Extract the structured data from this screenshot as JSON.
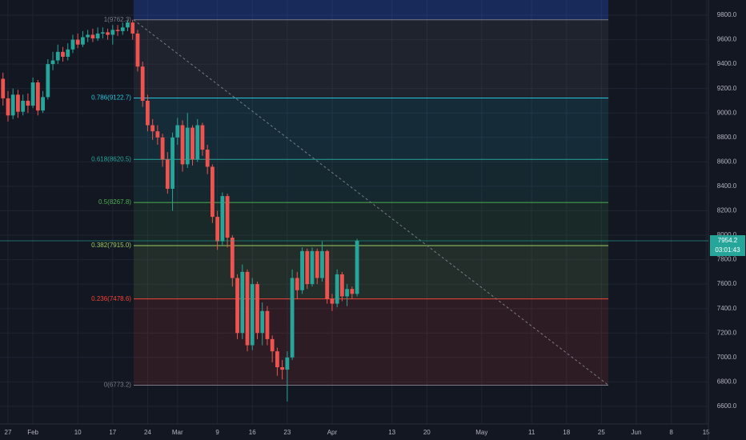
{
  "chart_data": {
    "type": "candlestick",
    "x": [
      -1,
      0,
      1,
      2,
      3,
      4,
      5,
      6,
      7,
      8,
      9,
      10,
      11,
      12,
      13,
      14,
      15,
      16,
      17,
      18,
      19,
      20,
      21,
      22,
      23,
      24,
      25,
      26,
      27,
      28,
      29,
      30,
      31,
      32,
      33,
      34,
      35,
      36,
      37,
      38,
      39,
      40,
      41,
      42,
      43,
      44,
      45,
      46,
      47,
      48,
      49,
      50,
      51,
      52,
      53,
      54,
      55,
      56,
      57,
      58,
      59,
      60,
      61,
      62,
      63,
      64,
      65,
      66,
      67,
      68,
      69,
      70
    ],
    "open": [
      9280,
      9120,
      8980,
      9150,
      9010,
      9100,
      9060,
      9250,
      9020,
      9130,
      9400,
      9430,
      9500,
      9460,
      9520,
      9600,
      9560,
      9620,
      9640,
      9610,
      9650,
      9660,
      9640,
      9680,
      9670,
      9700,
      9740,
      9650,
      9380,
      9100,
      8900,
      8850,
      8800,
      8620,
      8380,
      8800,
      8900,
      8580,
      8880,
      8620,
      8900,
      8700,
      8560,
      8150,
      7950,
      8320,
      7980,
      7650,
      7200,
      7700,
      7100,
      7600,
      7200,
      7380,
      7150,
      7050,
      6920,
      6900,
      7000,
      7650,
      7550,
      7870,
      7600,
      7870,
      7650,
      7870,
      7480,
      7440,
      7680,
      7500,
      7560,
      7520
    ],
    "high": [
      9330,
      9180,
      9200,
      9190,
      9150,
      9160,
      9290,
      9270,
      9180,
      9440,
      9500,
      9560,
      9540,
      9570,
      9640,
      9650,
      9670,
      9680,
      9690,
      9700,
      9700,
      9690,
      9720,
      9720,
      9740,
      9760,
      9762.3,
      9680,
      9420,
      9150,
      8950,
      8900,
      8830,
      8680,
      8840,
      8960,
      8940,
      9000,
      8900,
      8950,
      8920,
      8740,
      8580,
      8200,
      8350,
      8340,
      8000,
      7680,
      7760,
      7720,
      7650,
      7620,
      7450,
      7420,
      7180,
      7080,
      6980,
      7050,
      7720,
      7700,
      7900,
      7890,
      7900,
      7890,
      7950,
      7880,
      7520,
      7720,
      7700,
      7600,
      7580,
      7970
    ],
    "low": [
      9060,
      8930,
      8950,
      8960,
      8980,
      9000,
      9040,
      8980,
      9000,
      9110,
      9350,
      9400,
      9420,
      9430,
      9490,
      9530,
      9540,
      9580,
      9580,
      9590,
      9610,
      9600,
      9560,
      9630,
      9640,
      9670,
      9600,
      9340,
      9050,
      8850,
      8780,
      8740,
      8560,
      8340,
      8200,
      8740,
      8520,
      8550,
      8570,
      8600,
      8650,
      8500,
      8100,
      7880,
      7920,
      7900,
      7580,
      7150,
      7150,
      7050,
      7060,
      7150,
      7100,
      7100,
      6960,
      6850,
      6820,
      6640,
      6980,
      7480,
      7520,
      7560,
      7580,
      7600,
      7620,
      7440,
      7380,
      7410,
      7460,
      7420,
      7480,
      7500
    ],
    "close": [
      9120,
      8980,
      9150,
      9010,
      9100,
      9060,
      9250,
      9020,
      9130,
      9400,
      9430,
      9500,
      9460,
      9520,
      9600,
      9560,
      9620,
      9640,
      9610,
      9650,
      9660,
      9640,
      9680,
      9670,
      9700,
      9740,
      9650,
      9380,
      9100,
      8900,
      8850,
      8800,
      8620,
      8380,
      8800,
      8900,
      8580,
      8880,
      8620,
      8900,
      8700,
      8560,
      8150,
      7950,
      8320,
      7980,
      7650,
      7200,
      7700,
      7100,
      7600,
      7200,
      7380,
      7150,
      7050,
      6920,
      6900,
      7000,
      7650,
      7550,
      7870,
      7600,
      7870,
      7650,
      7870,
      7480,
      7440,
      7680,
      7500,
      7560,
      7520,
      7954.2
    ],
    "up_color": "#26a69a",
    "down_color": "#ef5350",
    "xlim": [
      -1.6,
      140.45
    ],
    "ylim": [
      6455.5,
      9924.4
    ],
    "xticks": [
      {
        "value": 0,
        "label": "27"
      },
      {
        "value": 5,
        "label": "Feb"
      },
      {
        "value": 14,
        "label": "10"
      },
      {
        "value": 21,
        "label": "17"
      },
      {
        "value": 28,
        "label": "24"
      },
      {
        "value": 34,
        "label": "Mar"
      },
      {
        "value": 42,
        "label": "9"
      },
      {
        "value": 49,
        "label": "16"
      },
      {
        "value": 56,
        "label": "23"
      },
      {
        "value": 65,
        "label": "Apr"
      },
      {
        "value": 77,
        "label": "13"
      },
      {
        "value": 84,
        "label": "20"
      },
      {
        "value": 95,
        "label": "May"
      },
      {
        "value": 105,
        "label": "11"
      },
      {
        "value": 112,
        "label": "18"
      },
      {
        "value": 119,
        "label": "25"
      },
      {
        "value": 126,
        "label": "Jun"
      },
      {
        "value": 133,
        "label": "8"
      },
      {
        "value": 140,
        "label": "15"
      }
    ],
    "yticks": [
      {
        "value": 6600,
        "label": "6600.0"
      },
      {
        "value": 6800,
        "label": "6800.0"
      },
      {
        "value": 7000,
        "label": "7000.0"
      },
      {
        "value": 7200,
        "label": "7200.0"
      },
      {
        "value": 7400,
        "label": "7400.0"
      },
      {
        "value": 7600,
        "label": "7600.0"
      },
      {
        "value": 7800,
        "label": "7800.0"
      },
      {
        "value": 8000,
        "label": "8000.0"
      },
      {
        "value": 8200,
        "label": "8200.0"
      },
      {
        "value": 8400,
        "label": "8400.0"
      },
      {
        "value": 8600,
        "label": "8600.0"
      },
      {
        "value": 8800,
        "label": "8800.0"
      },
      {
        "value": 9000,
        "label": "9000.0"
      },
      {
        "value": 9200,
        "label": "9200.0"
      },
      {
        "value": 9400,
        "label": "9400.0"
      },
      {
        "value": 9600,
        "label": "9600.0"
      },
      {
        "value": 9800,
        "label": "9800.0"
      }
    ],
    "grid": true,
    "fib_levels": [
      {
        "label": "1(9762.3)",
        "value": 9762.3,
        "color": "#787b86"
      },
      {
        "label": "0.786(9122.7)",
        "value": 9122.7,
        "color": "#26c6da"
      },
      {
        "label": "0.618(8620.5)",
        "value": 8620.5,
        "color": "#26a69a"
      },
      {
        "label": "0.5(8267.8)",
        "value": 8267.8,
        "color": "#4caf50"
      },
      {
        "label": "0.382(7915.0)",
        "value": 7915.0,
        "color": "#9ccc65"
      },
      {
        "label": "0.236(7478.6)",
        "value": 7478.6,
        "color": "#f44336"
      },
      {
        "label": "0(6773.2)",
        "value": 6773.2,
        "color": "#787b86"
      }
    ],
    "trend_line": {
      "x": [
        25.2,
        120.4
      ],
      "y": [
        9762.3,
        6773.2
      ]
    },
    "last_price": 7954.2,
    "countdown": "03:01:43"
  }
}
